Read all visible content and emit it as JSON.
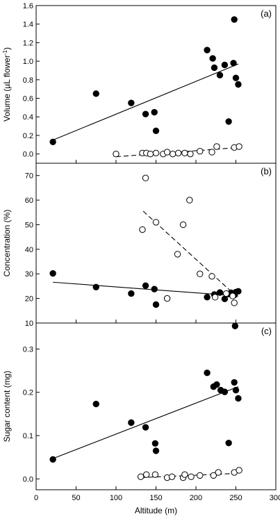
{
  "chart_data": [
    {
      "type": "scatter",
      "panel_label": "(a)",
      "ylabel": "Volume (µL flower",
      "ylabel_sup": "-1",
      "ylabel_close": ")",
      "ylim": [
        -0.1,
        1.6
      ],
      "yticks": [
        0.0,
        0.2,
        0.4,
        0.6,
        0.8,
        1.0,
        1.2,
        1.4,
        1.6
      ],
      "ytick_labels": [
        "0.0",
        "0.2",
        "0.4",
        "0.6",
        "0.8",
        "1.0",
        "1.2",
        "1.4",
        "1.6"
      ],
      "series": [
        {
          "marker": "filled-circle",
          "x": [
            21,
            75,
            119,
            137,
            148,
            150,
            214,
            221,
            223,
            230,
            236,
            241,
            247,
            248,
            250,
            253
          ],
          "y": [
            0.13,
            0.65,
            0.55,
            0.43,
            0.45,
            0.25,
            1.12,
            1.03,
            0.93,
            0.85,
            0.96,
            0.35,
            0.98,
            1.45,
            0.82,
            0.75
          ],
          "fit": {
            "style": "solid",
            "x": [
              21,
              253
            ],
            "y": [
              0.15,
              0.97
            ]
          }
        },
        {
          "marker": "open-circle",
          "x": [
            100,
            133,
            138,
            143,
            150,
            159,
            164,
            171,
            178,
            186,
            193,
            205,
            220,
            226,
            248,
            254
          ],
          "y": [
            0.0,
            0.01,
            0.01,
            0.0,
            0.01,
            0.0,
            0.02,
            0.0,
            0.01,
            0.01,
            0.0,
            0.03,
            0.02,
            0.08,
            0.07,
            0.08
          ],
          "fit": {
            "style": "dashed",
            "x": [
              100,
              254
            ],
            "y": [
              -0.03,
              0.07
            ]
          }
        }
      ]
    },
    {
      "type": "scatter",
      "panel_label": "(b)",
      "ylabel": "Concentration (%)",
      "ylim": [
        10,
        75
      ],
      "yticks": [
        10,
        20,
        30,
        40,
        50,
        60,
        70
      ],
      "ytick_labels": [
        "10",
        "20",
        "30",
        "40",
        "50",
        "60",
        "70"
      ],
      "series": [
        {
          "marker": "filled-circle",
          "x": [
            21,
            75,
            119,
            137,
            148,
            150,
            214,
            223,
            230,
            236,
            241,
            244,
            248,
            250,
            253
          ],
          "y": [
            30.2,
            24.6,
            22.0,
            25.2,
            23.8,
            17.5,
            20.5,
            21.6,
            22.4,
            19.8,
            21.8,
            22.3,
            21.4,
            22.6,
            22.9
          ],
          "fit": {
            "style": "solid",
            "x": [
              21,
              253
            ],
            "y": [
              26.6,
              21.0
            ]
          }
        },
        {
          "marker": "open-circle",
          "x": [
            133,
            137,
            150,
            164,
            177,
            184,
            192,
            205,
            220,
            224,
            238,
            246,
            248
          ],
          "y": [
            48,
            69,
            51,
            20,
            38,
            50,
            60,
            30,
            29,
            20.5,
            22,
            21,
            18.2
          ],
          "fit": {
            "style": "dashed",
            "x": [
              134,
              252
            ],
            "y": [
              55.5,
              20.5
            ]
          }
        }
      ]
    },
    {
      "type": "scatter",
      "panel_label": "(c)",
      "ylabel": "Sugar content (mg)",
      "xlabel": "Altitude (m)",
      "xlim": [
        0,
        300
      ],
      "xticks": [
        0,
        50,
        100,
        150,
        200,
        250,
        300
      ],
      "xtick_labels": [
        "0",
        "50",
        "100",
        "150",
        "200",
        "250",
        "300"
      ],
      "ylim": [
        -0.025,
        0.36
      ],
      "yticks": [
        0.0,
        0.1,
        0.2,
        0.3
      ],
      "ytick_labels": [
        "0.0",
        "0.1",
        "0.2",
        "0.3"
      ],
      "series": [
        {
          "marker": "filled-circle",
          "x": [
            21,
            75,
            119,
            137,
            149,
            150,
            214,
            222,
            226,
            231,
            236,
            241,
            248,
            249,
            250,
            253
          ],
          "y": [
            0.045,
            0.173,
            0.13,
            0.119,
            0.082,
            0.065,
            0.245,
            0.213,
            0.218,
            0.205,
            0.201,
            0.083,
            0.223,
            0.353,
            0.205,
            0.186
          ],
          "fit": {
            "style": "solid",
            "x": [
              21,
              253
            ],
            "y": [
              0.047,
              0.213
            ]
          }
        },
        {
          "marker": "open-circle",
          "x": [
            131,
            138,
            149,
            164,
            170,
            184,
            186,
            194,
            205,
            222,
            228,
            248,
            254
          ],
          "y": [
            0.005,
            0.01,
            0.01,
            0.003,
            0.005,
            0.003,
            0.01,
            0.005,
            0.008,
            0.008,
            0.015,
            0.015,
            0.02
          ],
          "fit": {
            "style": "dashed",
            "x": [
              131,
              254
            ],
            "y": [
              0.003,
              0.013
            ]
          }
        }
      ]
    }
  ]
}
